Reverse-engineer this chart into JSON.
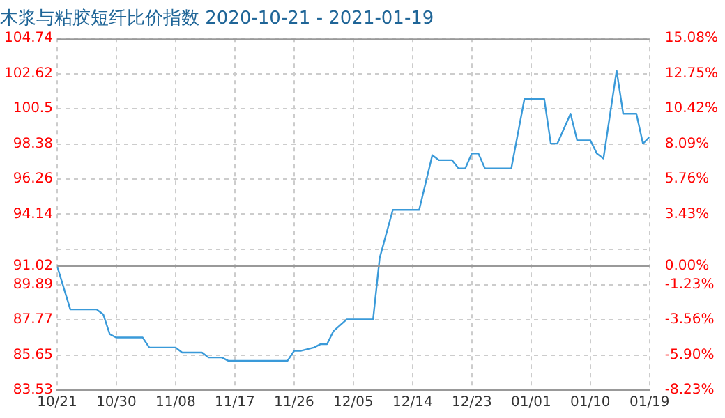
{
  "chart_data": {
    "type": "line",
    "title": "木浆与粘胶短纤比价指数 2020-10-21 - 2021-01-19",
    "x": [
      "2020-10-21",
      "2020-10-23",
      "2020-10-27",
      "2020-10-28",
      "2020-10-29",
      "2020-10-30",
      "2020-11-03",
      "2020-11-04",
      "2020-11-08",
      "2020-11-09",
      "2020-11-12",
      "2020-11-13",
      "2020-11-15",
      "2020-11-16",
      "2020-11-25",
      "2020-11-26",
      "2020-11-27",
      "2020-11-29",
      "2020-11-30",
      "2020-12-01",
      "2020-12-02",
      "2020-12-04",
      "2020-12-08",
      "2020-12-09",
      "2020-12-11",
      "2020-12-15",
      "2020-12-17",
      "2020-12-18",
      "2020-12-20",
      "2020-12-21",
      "2020-12-22",
      "2020-12-23",
      "2020-12-24",
      "2020-12-25",
      "2020-12-29",
      "2020-12-31",
      "2021-01-03",
      "2021-01-04",
      "2021-01-05",
      "2021-01-07",
      "2021-01-08",
      "2021-01-10",
      "2021-01-11",
      "2021-01-12",
      "2021-01-14",
      "2021-01-15",
      "2021-01-17",
      "2021-01-18",
      "2021-01-19"
    ],
    "series": [
      {
        "color": "#3a9ad9",
        "values": [
          91.0,
          88.4,
          88.4,
          88.1,
          86.9,
          86.7,
          86.7,
          86.1,
          86.1,
          85.8,
          85.8,
          85.5,
          85.5,
          85.3,
          85.3,
          85.9,
          85.9,
          86.1,
          86.3,
          86.3,
          87.1,
          87.8,
          87.8,
          91.5,
          94.4,
          94.4,
          97.7,
          97.4,
          97.4,
          96.9,
          96.9,
          97.8,
          97.8,
          96.9,
          96.9,
          101.1,
          101.1,
          98.4,
          98.4,
          100.2,
          98.6,
          98.6,
          97.8,
          97.5,
          102.8,
          100.2,
          100.2,
          98.4,
          98.8
        ]
      }
    ],
    "xlim": [
      "2020-10-21",
      "2021-01-19"
    ],
    "xticks": [
      {
        "value": "2020-10-21",
        "label": "10/21"
      },
      {
        "value": "2020-10-30",
        "label": "10/30"
      },
      {
        "value": "2020-11-08",
        "label": "11/08"
      },
      {
        "value": "2020-11-17",
        "label": "11/17"
      },
      {
        "value": "2020-11-26",
        "label": "11/26"
      },
      {
        "value": "2020-12-05",
        "label": "12/05"
      },
      {
        "value": "2020-12-14",
        "label": "12/14"
      },
      {
        "value": "2020-12-23",
        "label": "12/23"
      },
      {
        "value": "2021-01-01",
        "label": "01/01"
      },
      {
        "value": "2021-01-10",
        "label": "01/10"
      },
      {
        "value": "2021-01-19",
        "label": "01/19"
      }
    ],
    "ylim": [
      83.53,
      104.74
    ],
    "yticks": [
      83.53,
      85.65,
      87.77,
      89.89,
      91.02,
      {
        "value": 92.01,
        "label": null
      },
      94.14,
      96.26,
      98.38,
      100.5,
      102.62,
      104.74
    ],
    "y2lim": [
      -8.23,
      15.08
    ],
    "y2ticks": [
      {
        "value": -8.23,
        "label": "-8.23%"
      },
      {
        "value": -5.9,
        "label": "-5.90%"
      },
      {
        "value": -3.56,
        "label": "-3.56%"
      },
      {
        "value": -1.23,
        "label": "-1.23%"
      },
      {
        "value": 0,
        "label": "0.00%"
      },
      {
        "value": 1.09,
        "label": null
      },
      {
        "value": 3.43,
        "label": "3.43%"
      },
      {
        "value": 5.76,
        "label": "5.76%"
      },
      {
        "value": 8.09,
        "label": "8.09%"
      },
      {
        "value": 10.42,
        "label": "10.42%"
      },
      {
        "value": 12.75,
        "label": "12.75%"
      },
      {
        "value": 15.08,
        "label": "15.08%"
      }
    ],
    "ref_lines": [
      {
        "axis": "y",
        "value": 91.02,
        "color": "#999999"
      }
    ],
    "grid": true
  }
}
